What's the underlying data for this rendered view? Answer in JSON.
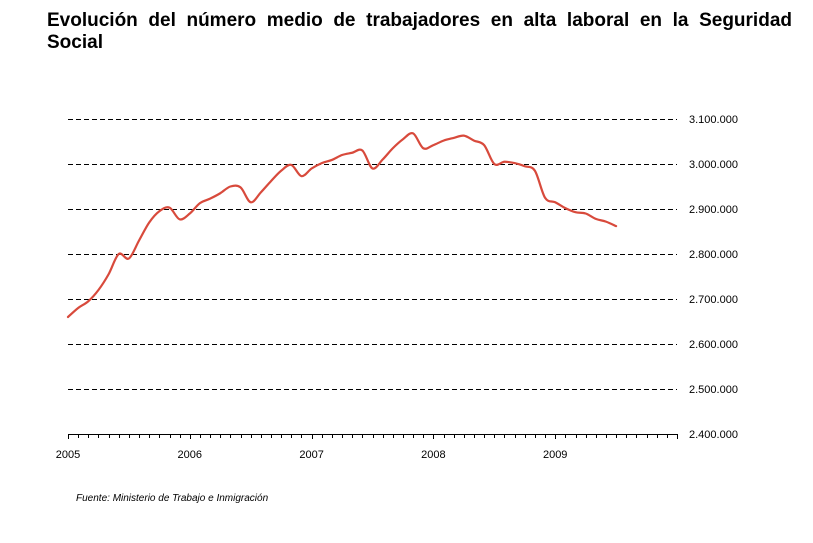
{
  "chart_data": {
    "type": "line",
    "title": "Evolución del número medio de trabajadores en alta laboral en la Seguridad Social",
    "xlabel": "",
    "ylabel": "",
    "source": "Fuente: Ministerio de Trabajo e Inmigración",
    "ylim": [
      2400000,
      3100000
    ],
    "y_ticks": [
      2400000,
      2500000,
      2600000,
      2700000,
      2800000,
      2900000,
      3000000,
      3100000
    ],
    "y_tick_labels": [
      "2.400.000",
      "2.500.000",
      "2.600.000",
      "2.700.000",
      "2.800.000",
      "2.900.000",
      "3.000.000",
      "3.100.000"
    ],
    "x_tick_labels": [
      "2005",
      "2006",
      "2007",
      "2008",
      "2009"
    ],
    "x_start_year": 2005,
    "x_months": 60,
    "grid": "horizontal dashed",
    "line_color": "#d84a3c",
    "series": [
      {
        "x": [
          "2005-01",
          "2005-02",
          "2005-03",
          "2005-04",
          "2005-05",
          "2005-06",
          "2005-07",
          "2005-08",
          "2005-09",
          "2005-10",
          "2005-11",
          "2005-12",
          "2006-01",
          "2006-02",
          "2006-03",
          "2006-04",
          "2006-05",
          "2006-06",
          "2006-07",
          "2006-08",
          "2006-09",
          "2006-10",
          "2006-11",
          "2006-12",
          "2007-01",
          "2007-02",
          "2007-03",
          "2007-04",
          "2007-05",
          "2007-06",
          "2007-07",
          "2007-08",
          "2007-09",
          "2007-10",
          "2007-11",
          "2007-12",
          "2008-01",
          "2008-02",
          "2008-03",
          "2008-04",
          "2008-05",
          "2008-06",
          "2008-07",
          "2008-08",
          "2008-09",
          "2008-10",
          "2008-11",
          "2008-12",
          "2009-01",
          "2009-02",
          "2009-03",
          "2009-04",
          "2009-05",
          "2009-06",
          "2009-07"
        ],
        "values": [
          2660000,
          2680000,
          2695000,
          2720000,
          2755000,
          2800000,
          2790000,
          2830000,
          2870000,
          2895000,
          2903000,
          2877000,
          2890000,
          2913000,
          2923000,
          2935000,
          2950000,
          2948000,
          2915000,
          2937000,
          2962000,
          2985000,
          2998000,
          2973000,
          2990000,
          3002000,
          3009000,
          3020000,
          3025000,
          3030000,
          2990000,
          3010000,
          3035000,
          3055000,
          3068000,
          3035000,
          3042000,
          3052000,
          3058000,
          3063000,
          3052000,
          3042000,
          3000000,
          3005000,
          3002000,
          2995000,
          2985000,
          2925000,
          2915000,
          2902000,
          2893000,
          2890000,
          2878000,
          2872000,
          2862000
        ]
      }
    ]
  }
}
